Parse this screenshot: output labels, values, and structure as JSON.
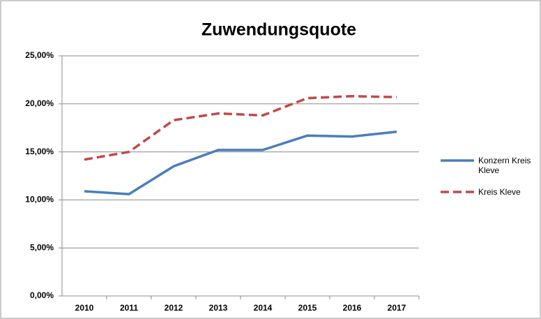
{
  "chart_data": {
    "type": "line",
    "title": "Zuwendungsquote",
    "categories": [
      "2010",
      "2011",
      "2012",
      "2013",
      "2014",
      "2015",
      "2016",
      "2017"
    ],
    "series": [
      {
        "name": "Konzern Kreis Kleve",
        "color": "#4a7ebb",
        "dash": false,
        "values": [
          10.9,
          10.6,
          13.5,
          15.2,
          15.2,
          16.7,
          16.6,
          17.1
        ]
      },
      {
        "name": "Kreis Kleve",
        "color": "#be4b48",
        "dash": true,
        "values": [
          14.2,
          15.0,
          18.3,
          19.0,
          18.8,
          20.6,
          20.8,
          20.7
        ]
      }
    ],
    "ylim": [
      0,
      25
    ],
    "yticks": [
      {
        "value": 0,
        "label": "0,00%"
      },
      {
        "value": 5,
        "label": "5,00%"
      },
      {
        "value": 10,
        "label": "10,00%"
      },
      {
        "value": 15,
        "label": "15,00%"
      },
      {
        "value": 20,
        "label": "20,00%"
      },
      {
        "value": 25,
        "label": "25,00%"
      }
    ],
    "grid": true,
    "legend": "right"
  }
}
